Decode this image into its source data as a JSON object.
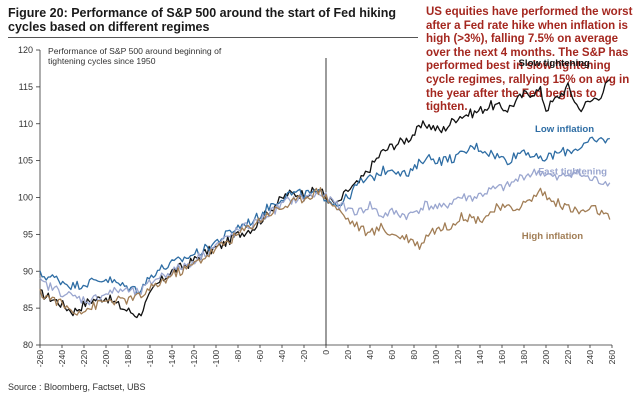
{
  "figure_title": "Figure 20: Performance of S&P 500 around the start of Fed hiking cycles based on different regimes",
  "side_note": "US equities have performed the worst after a Fed rate hike when inflation is high (>3%), falling 7.5% on average over the next 4 months. The S&P has performed best in slow tightening cycle regimes, rallying 15% on avg in the year after the Fed begins to tighten.",
  "source": "Source : Bloomberg, Factset, UBS",
  "colors": {
    "slow": "#111111",
    "low": "#2e6da4",
    "fast": "#9aa6cf",
    "high": "#a17d55",
    "note": "#a4271f",
    "label_slow": "#111111",
    "label_low": "#2e6da4",
    "label_fast": "#9aa6cf",
    "label_high": "#a17d55"
  },
  "chart_data": {
    "type": "line",
    "title": "Performance of S&P 500 around beginning of tightening cycles since 1950",
    "xlabel": "",
    "ylabel": "",
    "xlim": [
      -260,
      260
    ],
    "ylim": [
      80,
      120
    ],
    "x_ticks": [
      -260,
      -240,
      -220,
      -200,
      -180,
      -160,
      -140,
      -120,
      -100,
      -80,
      -60,
      -40,
      -20,
      0,
      20,
      40,
      60,
      80,
      100,
      120,
      140,
      160,
      180,
      200,
      220,
      240,
      260
    ],
    "y_ticks": [
      80,
      85,
      90,
      95,
      100,
      105,
      110,
      115,
      120
    ],
    "grid": false,
    "vline_x": 0,
    "series": [
      {
        "key": "slow",
        "name": "Slow tightening",
        "points": [
          [
            -260,
            87
          ],
          [
            -245,
            86
          ],
          [
            -230,
            84.5
          ],
          [
            -215,
            86
          ],
          [
            -200,
            86.5
          ],
          [
            -185,
            85
          ],
          [
            -170,
            84
          ],
          [
            -155,
            88
          ],
          [
            -140,
            90
          ],
          [
            -125,
            91
          ],
          [
            -110,
            92.5
          ],
          [
            -95,
            93.5
          ],
          [
            -80,
            95
          ],
          [
            -65,
            96
          ],
          [
            -50,
            98.5
          ],
          [
            -35,
            100.5
          ],
          [
            -20,
            100.5
          ],
          [
            -5,
            101
          ],
          [
            0,
            100
          ],
          [
            10,
            99
          ],
          [
            20,
            101
          ],
          [
            30,
            102
          ],
          [
            40,
            104
          ],
          [
            50,
            106
          ],
          [
            60,
            107
          ],
          [
            75,
            108
          ],
          [
            90,
            110
          ],
          [
            105,
            109
          ],
          [
            120,
            111
          ],
          [
            135,
            111.5
          ],
          [
            150,
            112.5
          ],
          [
            165,
            112
          ],
          [
            180,
            114
          ],
          [
            195,
            114.5
          ],
          [
            200,
            112
          ],
          [
            210,
            113.5
          ],
          [
            220,
            115
          ],
          [
            230,
            112
          ],
          [
            240,
            113
          ],
          [
            250,
            114
          ],
          [
            258,
            116
          ]
        ]
      },
      {
        "key": "low",
        "name": "Low inflation",
        "points": [
          [
            -260,
            89.5
          ],
          [
            -245,
            89
          ],
          [
            -230,
            88
          ],
          [
            -215,
            88.5
          ],
          [
            -200,
            89
          ],
          [
            -185,
            88
          ],
          [
            -170,
            87.5
          ],
          [
            -155,
            90
          ],
          [
            -140,
            91
          ],
          [
            -125,
            92
          ],
          [
            -110,
            93
          ],
          [
            -95,
            94.5
          ],
          [
            -80,
            96
          ],
          [
            -65,
            97
          ],
          [
            -50,
            99
          ],
          [
            -35,
            100.5
          ],
          [
            -20,
            100.5
          ],
          [
            -5,
            100.5
          ],
          [
            0,
            100
          ],
          [
            10,
            99
          ],
          [
            20,
            100
          ],
          [
            30,
            102
          ],
          [
            40,
            102.5
          ],
          [
            50,
            103.5
          ],
          [
            60,
            104
          ],
          [
            75,
            103
          ],
          [
            90,
            105.5
          ],
          [
            105,
            105
          ],
          [
            120,
            105.5
          ],
          [
            135,
            107
          ],
          [
            150,
            106
          ],
          [
            165,
            105
          ],
          [
            180,
            106.5
          ],
          [
            195,
            105
          ],
          [
            210,
            106
          ],
          [
            225,
            106.5
          ],
          [
            240,
            107.5
          ],
          [
            258,
            108
          ]
        ]
      },
      {
        "key": "fast",
        "name": "Fast tightening",
        "points": [
          [
            -260,
            88.5
          ],
          [
            -245,
            87.5
          ],
          [
            -230,
            86.5
          ],
          [
            -215,
            86
          ],
          [
            -200,
            87
          ],
          [
            -185,
            87.5
          ],
          [
            -170,
            87
          ],
          [
            -155,
            89
          ],
          [
            -140,
            90
          ],
          [
            -125,
            91
          ],
          [
            -110,
            92.5
          ],
          [
            -95,
            94
          ],
          [
            -80,
            95.5
          ],
          [
            -65,
            96.5
          ],
          [
            -50,
            98
          ],
          [
            -35,
            99.5
          ],
          [
            -20,
            100
          ],
          [
            -5,
            100.5
          ],
          [
            0,
            100
          ],
          [
            10,
            99
          ],
          [
            20,
            98.5
          ],
          [
            30,
            98
          ],
          [
            40,
            99
          ],
          [
            50,
            97.5
          ],
          [
            60,
            98
          ],
          [
            75,
            97.5
          ],
          [
            90,
            99
          ],
          [
            105,
            98.5
          ],
          [
            120,
            100
          ],
          [
            135,
            100
          ],
          [
            150,
            101
          ],
          [
            165,
            101.5
          ],
          [
            180,
            103
          ],
          [
            195,
            103.5
          ],
          [
            210,
            102.5
          ],
          [
            225,
            103.5
          ],
          [
            240,
            102.5
          ],
          [
            258,
            102
          ]
        ]
      },
      {
        "key": "high",
        "name": "High inflation",
        "points": [
          [
            -260,
            87
          ],
          [
            -245,
            86
          ],
          [
            -230,
            84.5
          ],
          [
            -215,
            85
          ],
          [
            -200,
            86
          ],
          [
            -185,
            86
          ],
          [
            -170,
            86.5
          ],
          [
            -155,
            88
          ],
          [
            -140,
            89.5
          ],
          [
            -125,
            90.5
          ],
          [
            -110,
            92
          ],
          [
            -95,
            93.5
          ],
          [
            -80,
            95
          ],
          [
            -65,
            96.5
          ],
          [
            -50,
            98
          ],
          [
            -35,
            99
          ],
          [
            -20,
            100
          ],
          [
            -5,
            101
          ],
          [
            0,
            100
          ],
          [
            10,
            98.5
          ],
          [
            20,
            97
          ],
          [
            30,
            96
          ],
          [
            40,
            95
          ],
          [
            50,
            96
          ],
          [
            60,
            95
          ],
          [
            75,
            94.5
          ],
          [
            85,
            93.5
          ],
          [
            95,
            95.5
          ],
          [
            110,
            96
          ],
          [
            125,
            97.5
          ],
          [
            140,
            97
          ],
          [
            155,
            98.5
          ],
          [
            170,
            98.5
          ],
          [
            185,
            99.5
          ],
          [
            195,
            101
          ],
          [
            205,
            99.5
          ],
          [
            215,
            99
          ],
          [
            230,
            98
          ],
          [
            245,
            98.5
          ],
          [
            258,
            97
          ]
        ]
      }
    ],
    "annotations": [
      {
        "key": "slow",
        "text": "Slow tightening",
        "x": 175,
        "y": 117.8
      },
      {
        "key": "low",
        "text": "Low inflation",
        "x": 190,
        "y": 108.9
      },
      {
        "key": "fast",
        "text": "Fast tightening",
        "x": 193,
        "y": 103.1
      },
      {
        "key": "high",
        "text": "High inflation",
        "x": 178,
        "y": 94.4
      }
    ]
  }
}
